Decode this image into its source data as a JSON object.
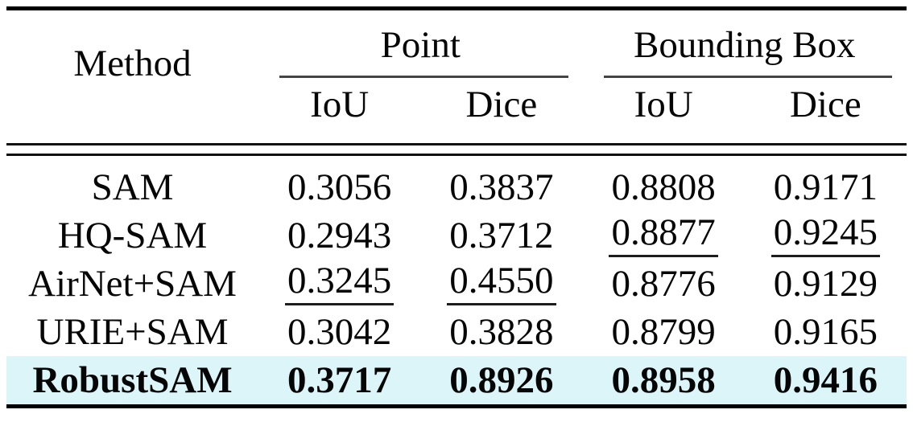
{
  "table": {
    "method_header": "Method",
    "col_groups": [
      {
        "label": "Point",
        "subcols": [
          "IoU",
          "Dice"
        ]
      },
      {
        "label": "Bounding Box",
        "subcols": [
          "IoU",
          "Dice"
        ]
      }
    ],
    "rows": [
      {
        "method": "SAM",
        "values": [
          "0.3056",
          "0.3837",
          "0.8808",
          "0.9171"
        ],
        "underlined_columns": [],
        "bold": false,
        "highlighted": false
      },
      {
        "method": "HQ-SAM",
        "values": [
          "0.2943",
          "0.3712",
          "0.8877",
          "0.9245"
        ],
        "underlined_columns": [
          2,
          3
        ],
        "bold": false,
        "highlighted": false
      },
      {
        "method": "AirNet+SAM",
        "values": [
          "0.3245",
          "0.4550",
          "0.8776",
          "0.9129"
        ],
        "underlined_columns": [
          0,
          1
        ],
        "bold": false,
        "highlighted": false
      },
      {
        "method": "URIE+SAM",
        "values": [
          "0.3042",
          "0.3828",
          "0.8799",
          "0.9165"
        ],
        "underlined_columns": [],
        "bold": false,
        "highlighted": false
      },
      {
        "method": "RobustSAM",
        "values": [
          "0.3717",
          "0.8926",
          "0.8958",
          "0.9416"
        ],
        "underlined_columns": [],
        "bold": true,
        "highlighted": true
      }
    ],
    "colors": {
      "highlight_row_background": "#dcf5f8",
      "rule_color": "#000000"
    }
  }
}
